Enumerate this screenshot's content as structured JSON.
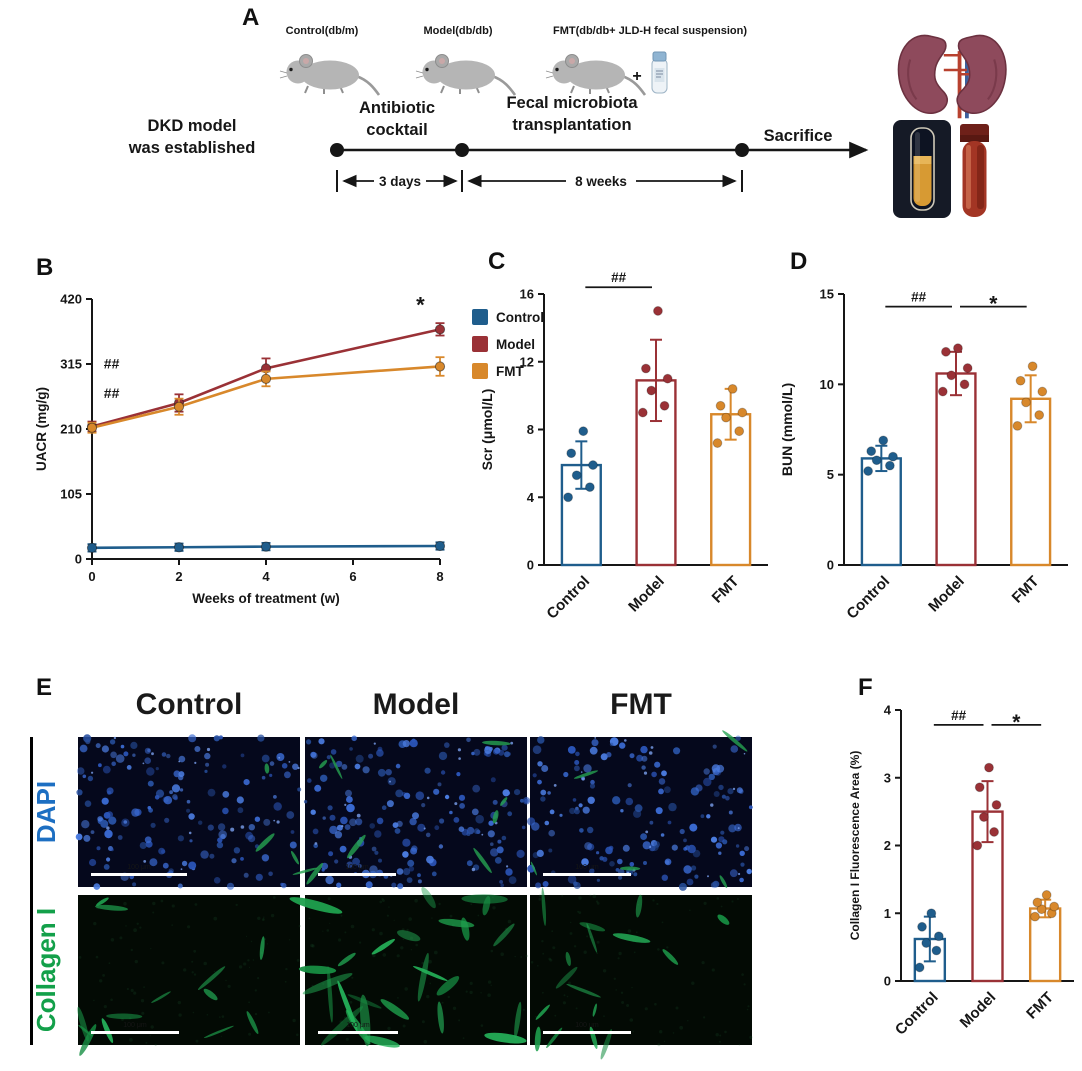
{
  "figure": {
    "panel_labels": {
      "A": "A",
      "B": "B",
      "C": "C",
      "D": "D",
      "E": "E",
      "F": "F"
    }
  },
  "panelA": {
    "groups": [
      "Control(db/m)",
      "Model(db/db)",
      "FMT(db/db+ JLD-H fecal suspension)"
    ],
    "plus": "+",
    "dkd_line1": "DKD model",
    "dkd_line2": "was established",
    "phase1_line1": "Antibiotic",
    "phase1_line2": "cocktail",
    "phase2_line1": "Fecal microbiota",
    "phase2_line2": "transplantation",
    "sacrifice": "Sacrifice",
    "duration1": "3 days",
    "duration2": "8 weeks"
  },
  "panelE": {
    "columns": [
      "Control",
      "Model",
      "FMT"
    ],
    "rows": [
      {
        "label": "DAPI",
        "color": "#1d6fc2"
      },
      {
        "label": "Collagen I",
        "color": "#13a04a"
      }
    ],
    "scale_bar": "100 μm",
    "images": [
      {
        "type": "dapi",
        "seed": 11,
        "nuclei": 150,
        "green": 3,
        "size": 1,
        "streaks": 0,
        "bar": 96
      },
      {
        "type": "dapi",
        "seed": 22,
        "nuclei": 165,
        "green": 9,
        "size": 1,
        "streaks": 0,
        "bar": 78
      },
      {
        "type": "dapi",
        "seed": 33,
        "nuclei": 155,
        "green": 5,
        "size": 1,
        "streaks": 0,
        "bar": 88
      },
      {
        "type": "collagen",
        "seed": 44,
        "nuclei": 0,
        "green": 0,
        "streaks": 13,
        "size": 0.8,
        "bar": 88
      },
      {
        "type": "collagen",
        "seed": 55,
        "nuclei": 0,
        "green": 0,
        "streaks": 26,
        "size": 1.25,
        "bar": 80
      },
      {
        "type": "collagen",
        "seed": 66,
        "nuclei": 0,
        "green": 0,
        "streaks": 16,
        "size": 0.9,
        "bar": 88
      }
    ]
  },
  "chart_data": [
    {
      "id": "uacr-line",
      "type": "line",
      "title": "",
      "ylabel": "UACR (mg/g)",
      "xlabel": "Weeks of treatment (w)",
      "x": [
        0,
        2,
        4,
        8
      ],
      "xticks": [
        0,
        2,
        4,
        6,
        8
      ],
      "xlim": [
        0,
        8
      ],
      "ylim": [
        0,
        420
      ],
      "yticks": [
        0,
        105,
        210,
        315,
        420
      ],
      "legend_position": "right",
      "series": [
        {
          "name": "Control",
          "color": "#1f5d8c",
          "values": [
            18,
            19,
            20,
            21
          ],
          "errors": [
            6,
            6,
            6,
            6
          ]
        },
        {
          "name": "Model",
          "color": "#9a3136",
          "values": [
            214,
            252,
            308,
            371
          ],
          "errors": [
            8,
            14,
            16,
            10
          ]
        },
        {
          "name": "FMT",
          "color": "#d8882b",
          "values": [
            212,
            246,
            291,
            311
          ],
          "errors": [
            8,
            13,
            12,
            15
          ]
        }
      ],
      "annotations": [
        {
          "x": 0.45,
          "y": 308,
          "text": "##",
          "color": "#9a3136"
        },
        {
          "x": 0.45,
          "y": 260,
          "text": "##",
          "color": "#d8882b"
        },
        {
          "x": 7.55,
          "y": 398,
          "text": "*",
          "color": "#d8882b"
        }
      ]
    },
    {
      "id": "scr-bar",
      "type": "bar",
      "ylabel": "Scr (μmol/L)",
      "categories": [
        "Control",
        "Model",
        "FMT"
      ],
      "values": [
        5.9,
        10.9,
        8.9
      ],
      "errors": [
        1.4,
        2.4,
        1.5
      ],
      "colors": [
        "#1f5d8c",
        "#9a3136",
        "#d8882b"
      ],
      "ylim": [
        0,
        16
      ],
      "yticks": [
        0,
        4,
        8,
        12,
        16
      ],
      "points": [
        [
          4.0,
          4.6,
          5.3,
          5.9,
          6.6,
          7.9
        ],
        [
          9.0,
          9.4,
          10.3,
          11.0,
          11.6,
          15.0
        ],
        [
          7.2,
          7.9,
          8.7,
          9.0,
          9.4,
          10.4
        ]
      ],
      "sig": [
        {
          "from": 0,
          "to": 1,
          "text": "##",
          "y": 16.4
        }
      ]
    },
    {
      "id": "bun-bar",
      "type": "bar",
      "ylabel": "BUN (mmol/L)",
      "categories": [
        "Control",
        "Model",
        "FMT"
      ],
      "values": [
        5.9,
        10.6,
        9.2
      ],
      "errors": [
        0.7,
        1.2,
        1.3
      ],
      "colors": [
        "#1f5d8c",
        "#9a3136",
        "#d8882b"
      ],
      "ylim": [
        0,
        15
      ],
      "yticks": [
        0,
        5,
        10,
        15
      ],
      "points": [
        [
          5.2,
          5.5,
          5.8,
          6.0,
          6.3,
          6.9
        ],
        [
          9.6,
          10.0,
          10.5,
          10.9,
          11.8,
          12.0
        ],
        [
          7.7,
          8.3,
          9.0,
          9.6,
          10.2,
          11.0
        ]
      ],
      "sig": [
        {
          "from": 0,
          "to": 1,
          "text": "##",
          "y": 14.3
        },
        {
          "from": 1,
          "to": 2,
          "text": "*",
          "y": 14.3
        }
      ]
    },
    {
      "id": "collagen-bar",
      "type": "bar",
      "ylabel": "Collagen I Fluorescence Area (%)",
      "ylabelSize": 12,
      "lpad": 56,
      "rpad": 6,
      "categories": [
        "Control",
        "Model",
        "FMT"
      ],
      "values": [
        0.62,
        2.5,
        1.07
      ],
      "errors": [
        0.33,
        0.45,
        0.13
      ],
      "colors": [
        "#1f5d8c",
        "#9a3136",
        "#d8882b"
      ],
      "ylim": [
        0,
        4
      ],
      "yticks": [
        0,
        1,
        2,
        3,
        4
      ],
      "points": [
        [
          0.2,
          0.45,
          0.56,
          0.66,
          0.8,
          1.0
        ],
        [
          2.0,
          2.2,
          2.42,
          2.6,
          2.86,
          3.15
        ],
        [
          0.95,
          1.0,
          1.06,
          1.1,
          1.16,
          1.27
        ]
      ],
      "sig": [
        {
          "from": 0,
          "to": 1,
          "text": "##",
          "y": 3.78
        },
        {
          "from": 1,
          "to": 2,
          "text": "*",
          "y": 3.78
        }
      ]
    }
  ]
}
